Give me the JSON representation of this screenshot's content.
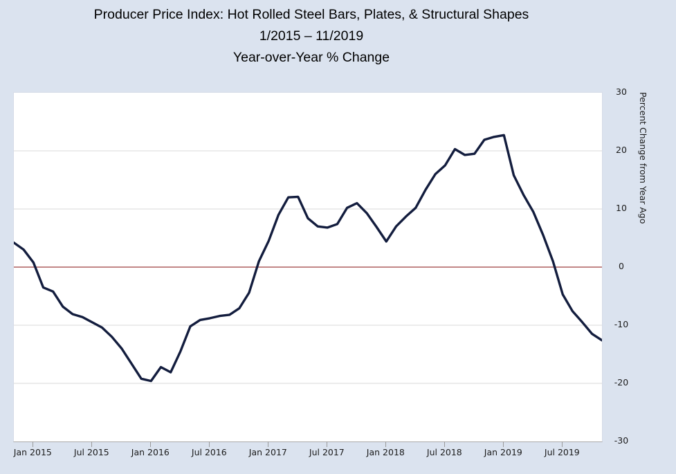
{
  "title": {
    "line1": "Producer Price Index: Hot Rolled Steel Bars, Plates, & Structural Shapes",
    "line2": "1/2015 – 11/2019",
    "line3": "Year-over-Year % Change"
  },
  "y_axis": {
    "label": "Percent Change from Year Ago",
    "ticks": [
      30,
      20,
      10,
      0,
      -10,
      -20,
      -30
    ]
  },
  "x_axis": {
    "tick_labels": [
      "Jan 2015",
      "Jul 2015",
      "Jan 2016",
      "Jul 2016",
      "Jan 2017",
      "Jul 2017",
      "Jan 2018",
      "Jul 2018",
      "Jan 2019",
      "Jul 2019"
    ]
  },
  "colors": {
    "page_background": "#dbe3ef",
    "plot_background": "#ffffff",
    "gridline": "#d8d8d8",
    "zero_line": "#ad5f5f",
    "series_line": "#131d3e",
    "text": "#1a1a1a"
  },
  "chart_data": {
    "type": "line",
    "title": "Producer Price Index: Hot Rolled Steel Bars, Plates, & Structural Shapes 1/2015 – 11/2019 Year-over-Year % Change",
    "ylabel": "Percent Change from Year Ago",
    "ylim": [
      -30,
      30
    ],
    "grid": true,
    "zero_line": true,
    "legend": "none",
    "x": [
      "2014-11",
      "2014-12",
      "2015-01",
      "2015-02",
      "2015-03",
      "2015-04",
      "2015-05",
      "2015-06",
      "2015-07",
      "2015-08",
      "2015-09",
      "2015-10",
      "2015-11",
      "2015-12",
      "2016-01",
      "2016-02",
      "2016-03",
      "2016-04",
      "2016-05",
      "2016-06",
      "2016-07",
      "2016-08",
      "2016-09",
      "2016-10",
      "2016-11",
      "2016-12",
      "2017-01",
      "2017-02",
      "2017-03",
      "2017-04",
      "2017-05",
      "2017-06",
      "2017-07",
      "2017-08",
      "2017-09",
      "2017-10",
      "2017-11",
      "2017-12",
      "2018-01",
      "2018-02",
      "2018-03",
      "2018-04",
      "2018-05",
      "2018-06",
      "2018-07",
      "2018-08",
      "2018-09",
      "2018-10",
      "2018-11",
      "2018-12",
      "2019-01",
      "2019-02",
      "2019-03",
      "2019-04",
      "2019-05",
      "2019-06",
      "2019-07",
      "2019-08",
      "2019-09",
      "2019-10",
      "2019-11"
    ],
    "values": [
      4.2,
      3.0,
      0.8,
      -3.5,
      -4.2,
      -6.8,
      -8.1,
      -8.6,
      -9.5,
      -10.4,
      -12.0,
      -14.0,
      -16.6,
      -19.2,
      -19.6,
      -17.2,
      -18.1,
      -14.5,
      -10.2,
      -9.1,
      -8.8,
      -8.4,
      -8.2,
      -7.1,
      -4.4,
      1.0,
      4.5,
      9.0,
      12.0,
      12.1,
      8.4,
      7.0,
      6.8,
      7.4,
      10.2,
      11.0,
      9.3,
      6.9,
      4.4,
      7.0,
      8.7,
      10.2,
      13.3,
      16.0,
      17.5,
      20.3,
      19.3,
      19.5,
      21.9,
      22.4,
      22.7,
      15.8,
      12.4,
      9.5,
      5.5,
      1.0,
      -4.7,
      -7.6,
      -9.5,
      -11.5,
      -12.6
    ],
    "x_tick_indices": [
      2,
      8,
      14,
      20,
      26,
      32,
      38,
      44,
      50,
      56
    ]
  }
}
